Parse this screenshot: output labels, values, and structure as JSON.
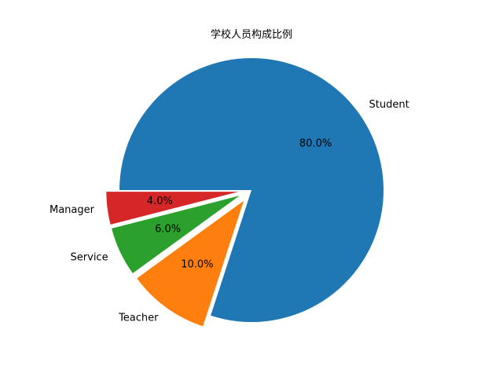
{
  "chart_data": {
    "type": "pie",
    "title": "学校人员构成比例",
    "slices": [
      {
        "label": "Student",
        "value": 80.0,
        "pct_label": "80.0%",
        "color": "#1f77b4",
        "exploded": false
      },
      {
        "label": "Teacher",
        "value": 10.0,
        "pct_label": "10.0%",
        "color": "#ff7f0e",
        "exploded": true
      },
      {
        "label": "Service",
        "value": 6.0,
        "pct_label": "6.0%",
        "color": "#2ca02c",
        "exploded": true
      },
      {
        "label": "Manager",
        "value": 4.0,
        "pct_label": "4.0%",
        "color": "#d62728",
        "exploded": true
      }
    ],
    "start_angle_deg": 180,
    "direction": "clockwise"
  }
}
